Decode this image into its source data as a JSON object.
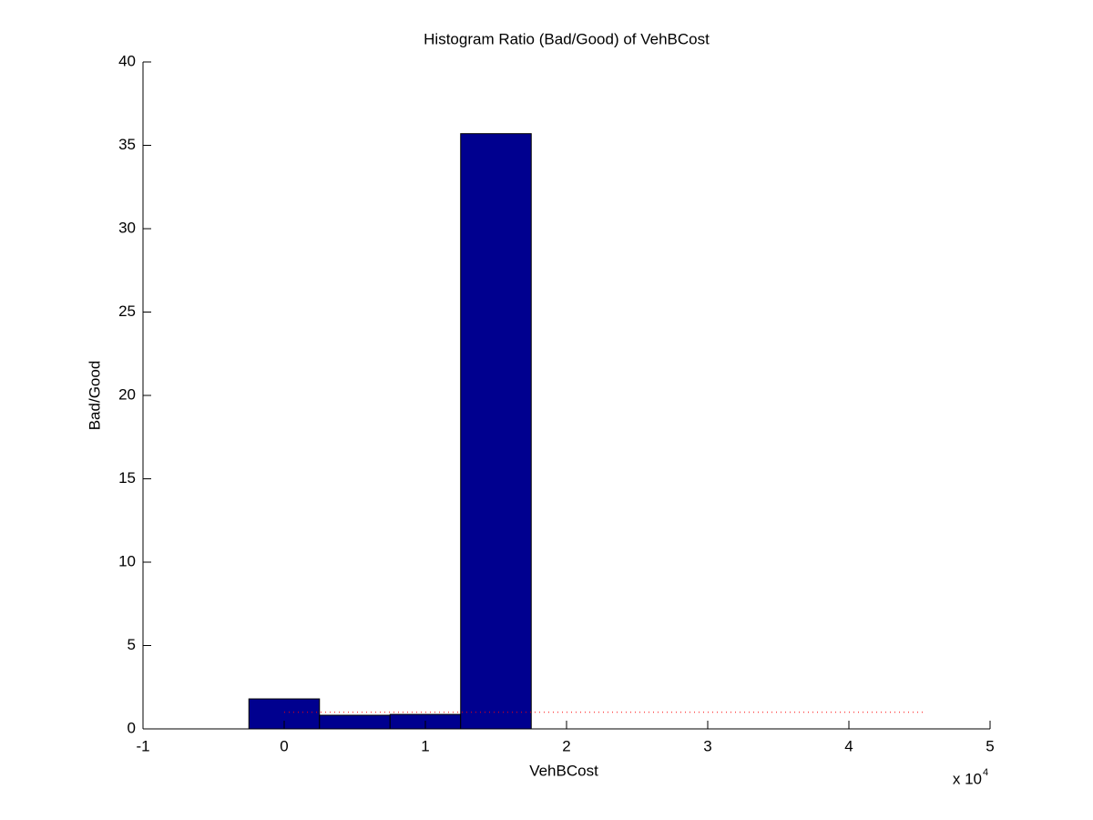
{
  "chart_data": {
    "type": "histogram",
    "title": "Histogram Ratio (Bad/Good) of VehBCost",
    "x_label": "VehBCost",
    "y_label": "Bad/Good",
    "x_multiplier": {
      "base": "x 10",
      "exponent": "4"
    },
    "bins": [
      -0.25,
      0.25,
      0.75,
      1.25,
      1.75
    ],
    "values": [
      1.8,
      0.82,
      0.87,
      35.7
    ],
    "color": "#00008f",
    "reference_line": {
      "y": 1,
      "x": [
        0,
        4.54
      ],
      "color": "#ff0000"
    },
    "xlim": [
      -1,
      5
    ],
    "xticks": [
      -1,
      0,
      1,
      2,
      3,
      4,
      5
    ],
    "ylim": [
      0,
      40
    ],
    "yticks": [
      0,
      5,
      10,
      15,
      20,
      25,
      30,
      35,
      40
    ],
    "grid": false
  }
}
